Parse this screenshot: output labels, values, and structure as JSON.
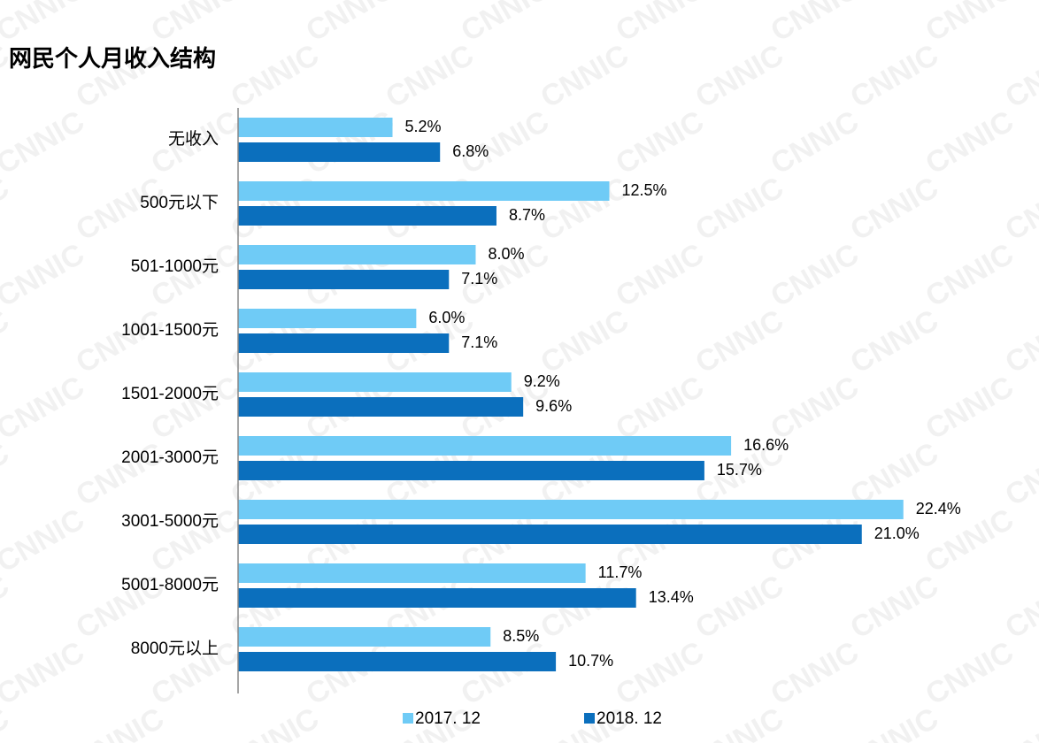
{
  "chart_data": {
    "type": "hbar",
    "title": "网民个人月收入结构",
    "watermark": "CNNIC",
    "categories": [
      "无收入",
      "500元以下",
      "501-1000元",
      "1001-1500元",
      "1501-2000元",
      "2001-3000元",
      "3001-5000元",
      "5001-8000元",
      "8000元以上"
    ],
    "series": [
      {
        "name": "2017. 12",
        "color": "#6fcbf6",
        "values": [
          5.2,
          12.5,
          8.0,
          6.0,
          9.2,
          16.6,
          22.4,
          11.7,
          8.5
        ],
        "value_labels": [
          "5.2%",
          "12.5%",
          "8.0%",
          "6.0%",
          "9.2%",
          "16.6%",
          "22.4%",
          "11.7%",
          "8.5%"
        ]
      },
      {
        "name": "2018. 12",
        "color": "#0b6fbd",
        "values": [
          6.8,
          8.7,
          7.1,
          7.1,
          9.6,
          15.7,
          21.0,
          13.4,
          10.7
        ],
        "value_labels": [
          "6.8%",
          "8.7%",
          "7.1%",
          "7.1%",
          "9.6%",
          "15.7%",
          "21.0%",
          "13.4%",
          "10.7%"
        ]
      }
    ],
    "xlim": [
      0,
      25
    ],
    "legend": "bottom"
  }
}
